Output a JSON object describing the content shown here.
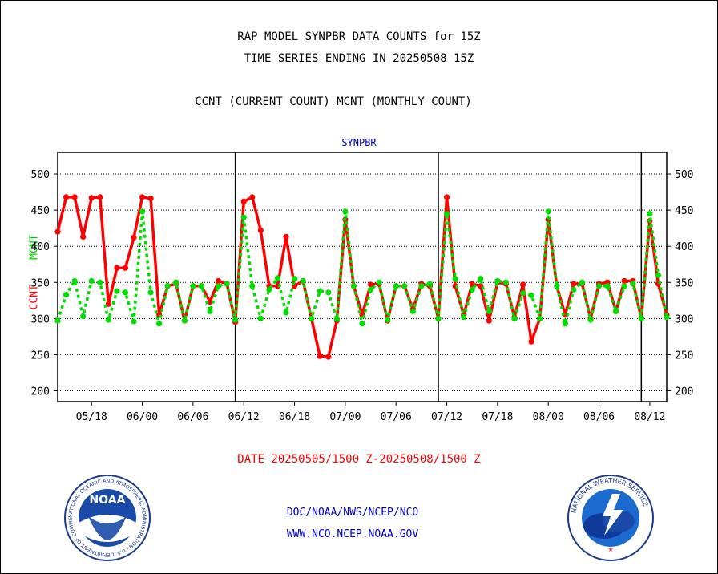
{
  "titles": {
    "line1": "RAP MODEL SYNPBR DATA COUNTS for 15Z",
    "line2": "TIME SERIES ENDING IN 20250508 15Z",
    "line3": "CCNT (CURRENT COUNT) MCNT (MONTHLY COUNT)"
  },
  "date_range": "DATE 20250505/1500 Z-20250508/1500 Z",
  "footer": {
    "org": "DOC/NOAA/NWS/NCEP/NCO",
    "website": "WWW.NCO.NCEP.NOAA.GOV"
  },
  "logos": {
    "left": {
      "icon": "noaa-logo",
      "text": "NOAA",
      "ring_text": "NATIONAL OCEANIC AND ATMOSPHERIC ADMINISTRATION · U.S. DEPARTMENT OF COMMERCE"
    },
    "right": {
      "icon": "nws-logo",
      "ring_text": "NATIONAL WEATHER SERVICE"
    }
  },
  "chart_data": {
    "type": "line",
    "title": "SYNPBR",
    "ylabel_left": "CCNT",
    "ylabel_right": "MCNT",
    "ylim": [
      185,
      530
    ],
    "yticks": [
      200,
      250,
      300,
      350,
      400,
      450,
      500
    ],
    "x_tick_labels": [
      "05/18",
      "06/00",
      "06/06",
      "06/12",
      "06/18",
      "07/00",
      "07/06",
      "07/12",
      "07/18",
      "08/00",
      "08/06",
      "08/12"
    ],
    "x_tick_positions": [
      4,
      10,
      16,
      22,
      28,
      34,
      40,
      46,
      52,
      58,
      64,
      70
    ],
    "day_separators": [
      21,
      45,
      69
    ],
    "x_range": [
      0,
      72
    ],
    "grid": true,
    "series": [
      {
        "name": "CCNT",
        "color": "#ff0000",
        "values": [
          420,
          468,
          468,
          413,
          467,
          468,
          320,
          370,
          370,
          412,
          468,
          466,
          305,
          345,
          348,
          297,
          345,
          345,
          323,
          352,
          348,
          295,
          462,
          468,
          422,
          345,
          345,
          413,
          345,
          352,
          300,
          248,
          247,
          297,
          437,
          345,
          305,
          347,
          348,
          297,
          345,
          345,
          313,
          348,
          345,
          300,
          468,
          345,
          305,
          348,
          345,
          297,
          350,
          348,
          302,
          347,
          268,
          300,
          437,
          345,
          305,
          348,
          348,
          300,
          348,
          350,
          310,
          352,
          352,
          300,
          435,
          348,
          305
        ]
      },
      {
        "name": "MCNT",
        "color": "#00dd00",
        "values": [
          297,
          333,
          352,
          303,
          352,
          350,
          298,
          338,
          336,
          296,
          448,
          336,
          293,
          345,
          350,
          297,
          345,
          345,
          310,
          345,
          348,
          298,
          440,
          345,
          300,
          340,
          356,
          308,
          355,
          352,
          300,
          338,
          336,
          299,
          448,
          345,
          293,
          340,
          350,
          298,
          345,
          345,
          310,
          345,
          348,
          300,
          445,
          355,
          302,
          340,
          355,
          310,
          352,
          350,
          300,
          335,
          332,
          300,
          448,
          345,
          293,
          340,
          350,
          298,
          345,
          345,
          310,
          345,
          348,
          300,
          445,
          360,
          302
        ]
      }
    ]
  }
}
